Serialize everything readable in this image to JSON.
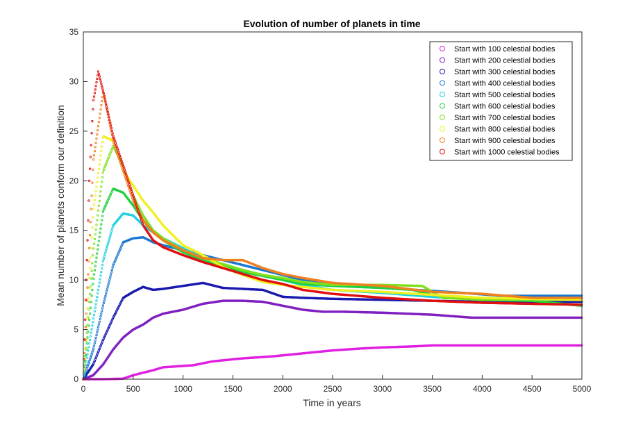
{
  "chart_data": {
    "type": "scatter",
    "title": "Evolution of number of planets in time",
    "xlabel": "Time in years",
    "ylabel": "Mean number of planets conform our definition",
    "xlim": [
      0,
      5000
    ],
    "ylim": [
      0,
      35
    ],
    "xticks": [
      0,
      500,
      1000,
      1500,
      2000,
      2500,
      3000,
      3500,
      4000,
      4500,
      5000
    ],
    "yticks": [
      0,
      5,
      10,
      15,
      20,
      25,
      30,
      35
    ],
    "grid": false,
    "legend_position": "top-right",
    "marker": "o",
    "series": [
      {
        "name": "Start with 100 celestial bodies",
        "color": "#e020e0",
        "points": [
          [
            0,
            0
          ],
          [
            200,
            0
          ],
          [
            400,
            0.05
          ],
          [
            500,
            0.4
          ],
          [
            700,
            0.9
          ],
          [
            800,
            1.2
          ],
          [
            1100,
            1.4
          ],
          [
            1300,
            1.8
          ],
          [
            1600,
            2.1
          ],
          [
            1900,
            2.3
          ],
          [
            2200,
            2.6
          ],
          [
            2500,
            2.9
          ],
          [
            2800,
            3.1
          ],
          [
            3000,
            3.2
          ],
          [
            3300,
            3.3
          ],
          [
            3500,
            3.4
          ],
          [
            5000,
            3.4
          ]
        ]
      },
      {
        "name": "Start with 200 celestial bodies",
        "color": "#8020c0",
        "points": [
          [
            0,
            0
          ],
          [
            100,
            0.4
          ],
          [
            200,
            1.5
          ],
          [
            300,
            3.0
          ],
          [
            400,
            4.2
          ],
          [
            500,
            5.0
          ],
          [
            600,
            5.5
          ],
          [
            700,
            6.2
          ],
          [
            800,
            6.6
          ],
          [
            900,
            6.8
          ],
          [
            1000,
            7.0
          ],
          [
            1200,
            7.6
          ],
          [
            1400,
            7.9
          ],
          [
            1600,
            7.9
          ],
          [
            1800,
            7.8
          ],
          [
            2000,
            7.4
          ],
          [
            2200,
            7.0
          ],
          [
            2400,
            6.8
          ],
          [
            2600,
            6.8
          ],
          [
            3000,
            6.7
          ],
          [
            3500,
            6.5
          ],
          [
            3900,
            6.2
          ],
          [
            5000,
            6.2
          ]
        ]
      },
      {
        "name": "Start with 300 celestial bodies",
        "color": "#1a1ab0",
        "points": [
          [
            0,
            0
          ],
          [
            100,
            1.5
          ],
          [
            200,
            4.0
          ],
          [
            300,
            6.2
          ],
          [
            400,
            8.2
          ],
          [
            500,
            8.8
          ],
          [
            600,
            9.3
          ],
          [
            700,
            9.0
          ],
          [
            800,
            9.1
          ],
          [
            1000,
            9.4
          ],
          [
            1200,
            9.7
          ],
          [
            1400,
            9.2
          ],
          [
            1600,
            9.1
          ],
          [
            1800,
            9.0
          ],
          [
            2000,
            8.3
          ],
          [
            2200,
            8.2
          ],
          [
            2500,
            8.1
          ],
          [
            3000,
            8.0
          ],
          [
            3500,
            7.9
          ],
          [
            4000,
            7.8
          ],
          [
            4500,
            7.8
          ],
          [
            5000,
            7.8
          ]
        ]
      },
      {
        "name": "Start with 400 celestial bodies",
        "color": "#1a78d0",
        "points": [
          [
            0,
            0
          ],
          [
            100,
            3.0
          ],
          [
            200,
            7.5
          ],
          [
            300,
            11.5
          ],
          [
            400,
            13.8
          ],
          [
            500,
            14.2
          ],
          [
            600,
            14.3
          ],
          [
            700,
            13.8
          ],
          [
            800,
            13.5
          ],
          [
            1000,
            13.0
          ],
          [
            1200,
            12.5
          ],
          [
            1400,
            12.0
          ],
          [
            1600,
            11.5
          ],
          [
            1800,
            11.0
          ],
          [
            2000,
            10.5
          ],
          [
            2200,
            10.0
          ],
          [
            2500,
            9.6
          ],
          [
            3000,
            9.2
          ],
          [
            3500,
            8.9
          ],
          [
            3800,
            8.7
          ],
          [
            4200,
            8.4
          ],
          [
            5000,
            8.4
          ]
        ]
      },
      {
        "name": "Start with 500 celestial bodies",
        "color": "#20d0e0",
        "points": [
          [
            0,
            0
          ],
          [
            100,
            6.0
          ],
          [
            200,
            12.0
          ],
          [
            300,
            15.5
          ],
          [
            400,
            16.7
          ],
          [
            500,
            16.5
          ],
          [
            600,
            15.5
          ],
          [
            700,
            14.8
          ],
          [
            800,
            14.2
          ],
          [
            1000,
            13.2
          ],
          [
            1200,
            12.2
          ],
          [
            1400,
            11.6
          ],
          [
            1600,
            11.0
          ],
          [
            1800,
            10.5
          ],
          [
            2000,
            10.0
          ],
          [
            2200,
            9.5
          ],
          [
            2500,
            9.0
          ],
          [
            3000,
            8.7
          ],
          [
            3500,
            8.3
          ],
          [
            4000,
            8.0
          ],
          [
            5000,
            8.0
          ]
        ]
      },
      {
        "name": "Start with 600 celestial bodies",
        "color": "#20d040",
        "points": [
          [
            0,
            0
          ],
          [
            100,
            10.0
          ],
          [
            200,
            17.0
          ],
          [
            300,
            19.2
          ],
          [
            400,
            18.8
          ],
          [
            500,
            17.5
          ],
          [
            600,
            16.0
          ],
          [
            700,
            14.8
          ],
          [
            800,
            14.0
          ],
          [
            1000,
            12.8
          ],
          [
            1200,
            12.0
          ],
          [
            1400,
            11.4
          ],
          [
            1600,
            10.8
          ],
          [
            1800,
            10.4
          ],
          [
            2000,
            10.0
          ],
          [
            2200,
            9.6
          ],
          [
            2500,
            9.4
          ],
          [
            3000,
            9.2
          ],
          [
            3300,
            9.0
          ],
          [
            3500,
            8.5
          ],
          [
            4000,
            8.0
          ],
          [
            4500,
            7.9
          ],
          [
            5000,
            7.4
          ]
        ]
      },
      {
        "name": "Start with 700 celestial bodies",
        "color": "#80e020",
        "points": [
          [
            0,
            0
          ],
          [
            100,
            13.0
          ],
          [
            200,
            21.0
          ],
          [
            300,
            23.5
          ],
          [
            400,
            21.5
          ],
          [
            500,
            18.5
          ],
          [
            600,
            16.5
          ],
          [
            700,
            15.0
          ],
          [
            800,
            14.2
          ],
          [
            1000,
            13.0
          ],
          [
            1200,
            12.2
          ],
          [
            1400,
            11.6
          ],
          [
            1600,
            11.0
          ],
          [
            1800,
            10.5
          ],
          [
            2000,
            10.2
          ],
          [
            2200,
            9.8
          ],
          [
            2500,
            9.5
          ],
          [
            3000,
            9.5
          ],
          [
            3400,
            9.4
          ],
          [
            3600,
            8.2
          ],
          [
            4000,
            8.0
          ],
          [
            5000,
            8.0
          ]
        ]
      },
      {
        "name": "Start with 800 celestial bodies",
        "color": "#f0f020",
        "points": [
          [
            0,
            0
          ],
          [
            100,
            17.0
          ],
          [
            200,
            24.5
          ],
          [
            300,
            24.0
          ],
          [
            400,
            21.0
          ],
          [
            500,
            19.5
          ],
          [
            600,
            18.0
          ],
          [
            700,
            16.8
          ],
          [
            800,
            15.5
          ],
          [
            900,
            14.5
          ],
          [
            1000,
            13.5
          ],
          [
            1200,
            12.5
          ],
          [
            1400,
            11.3
          ],
          [
            1600,
            10.5
          ],
          [
            1800,
            9.8
          ],
          [
            2000,
            9.5
          ],
          [
            2500,
            9.0
          ],
          [
            3000,
            8.8
          ],
          [
            3500,
            8.5
          ],
          [
            4000,
            8.2
          ],
          [
            5000,
            8.0
          ]
        ]
      },
      {
        "name": "Start with 900 celestial bodies",
        "color": "#f08020",
        "points": [
          [
            0,
            0
          ],
          [
            100,
            22.0
          ],
          [
            200,
            29.0
          ],
          [
            300,
            24.0
          ],
          [
            400,
            21.0
          ],
          [
            500,
            18.0
          ],
          [
            600,
            16.0
          ],
          [
            700,
            14.8
          ],
          [
            800,
            14.0
          ],
          [
            1000,
            13.0
          ],
          [
            1200,
            12.2
          ],
          [
            1400,
            12.0
          ],
          [
            1600,
            12.0
          ],
          [
            1800,
            11.2
          ],
          [
            2000,
            10.6
          ],
          [
            2200,
            10.2
          ],
          [
            2500,
            9.7
          ],
          [
            3000,
            9.4
          ],
          [
            3500,
            8.8
          ],
          [
            4000,
            8.6
          ],
          [
            4500,
            8.2
          ],
          [
            5000,
            8.2
          ]
        ]
      },
      {
        "name": "Start with 1000 celestial bodies",
        "color": "#e01010",
        "points": [
          [
            0,
            0
          ],
          [
            60,
            20.0
          ],
          [
            100,
            28.0
          ],
          [
            150,
            31.0
          ],
          [
            200,
            29.0
          ],
          [
            300,
            24.5
          ],
          [
            400,
            21.5
          ],
          [
            500,
            18.5
          ],
          [
            600,
            15.5
          ],
          [
            700,
            14.0
          ],
          [
            800,
            13.3
          ],
          [
            1000,
            12.5
          ],
          [
            1200,
            11.8
          ],
          [
            1400,
            11.2
          ],
          [
            1600,
            10.6
          ],
          [
            1800,
            10.0
          ],
          [
            2000,
            9.6
          ],
          [
            2200,
            9.0
          ],
          [
            2500,
            8.6
          ],
          [
            3000,
            8.2
          ],
          [
            3500,
            7.9
          ],
          [
            4000,
            7.7
          ],
          [
            4500,
            7.6
          ],
          [
            5000,
            7.5
          ]
        ]
      }
    ]
  }
}
